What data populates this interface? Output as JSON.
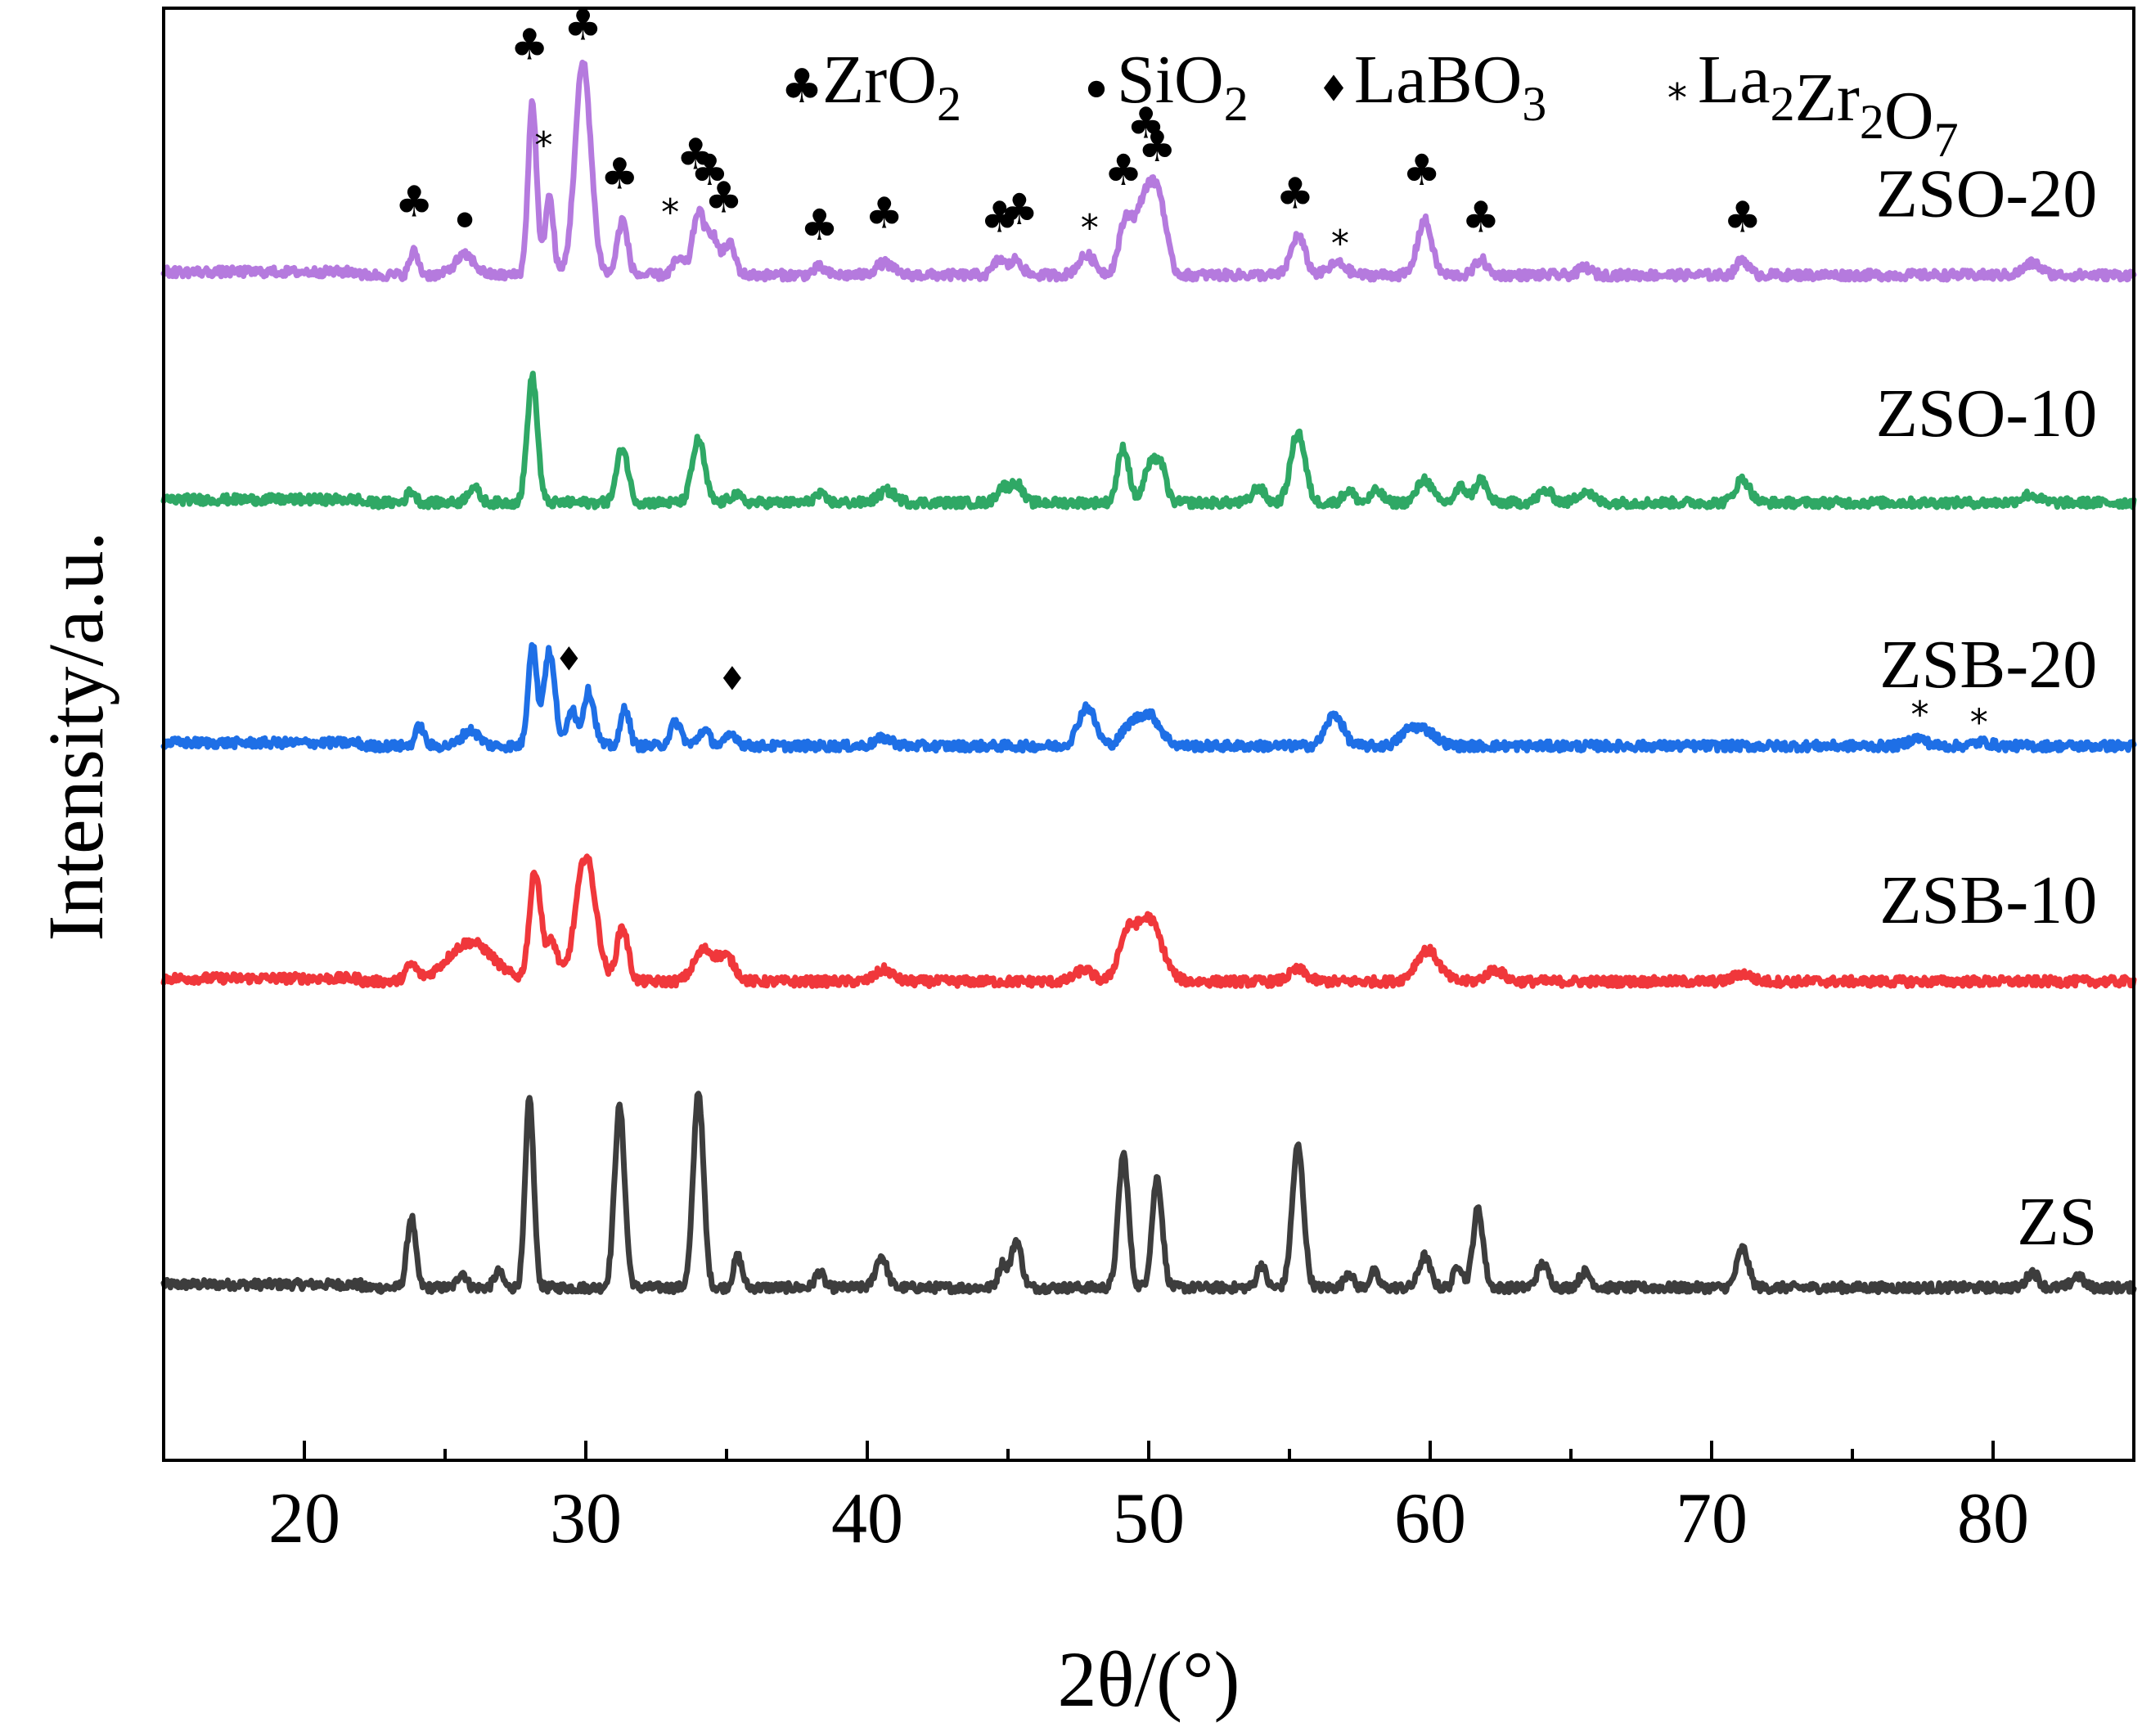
{
  "chart_data": {
    "type": "line",
    "xlabel": "2θ/(°)",
    "ylabel": "Intensity/a.u.",
    "xlim": [
      15,
      85
    ],
    "xticks": [
      20,
      30,
      40,
      50,
      60,
      70,
      80
    ],
    "legend": {
      "placement": "top-right",
      "entries": [
        {
          "marker": "club",
          "label": "ZrO",
          "sub": "2"
        },
        {
          "marker": "dot",
          "label": "SiO",
          "sub": "2"
        },
        {
          "marker": "diamond",
          "label": "LaBO",
          "sub": "3"
        },
        {
          "marker": "star",
          "label": "La",
          "sub": "2",
          "label2": "Zr",
          "sub2": "2",
          "label3": "O",
          "sub3": "7"
        }
      ]
    },
    "series": [
      {
        "name": "ZS",
        "color": "#3d3d3d",
        "offset": 0.0,
        "baseline": 0.22,
        "peaks": [
          [
            23.8,
            0.09,
            0.15
          ],
          [
            25.6,
            0.02,
            0.15
          ],
          [
            26.9,
            0.02,
            0.15
          ],
          [
            28.0,
            0.24,
            0.15
          ],
          [
            31.2,
            0.23,
            0.18
          ],
          [
            34.0,
            0.25,
            0.18
          ],
          [
            35.4,
            0.04,
            0.15
          ],
          [
            38.3,
            0.02,
            0.15
          ],
          [
            40.5,
            0.04,
            0.2
          ],
          [
            44.8,
            0.03,
            0.15
          ],
          [
            45.3,
            0.06,
            0.18
          ],
          [
            49.1,
            0.17,
            0.18
          ],
          [
            50.3,
            0.14,
            0.18
          ],
          [
            54.0,
            0.03,
            0.15
          ],
          [
            55.3,
            0.18,
            0.2
          ],
          [
            57.1,
            0.02,
            0.15
          ],
          [
            58.0,
            0.02,
            0.15
          ],
          [
            59.8,
            0.04,
            0.2
          ],
          [
            61.0,
            0.03,
            0.15
          ],
          [
            61.7,
            0.1,
            0.18
          ],
          [
            64.0,
            0.03,
            0.2
          ],
          [
            65.5,
            0.02,
            0.2
          ],
          [
            71.1,
            0.05,
            0.2
          ],
          [
            81.4,
            0.02,
            0.2
          ],
          [
            83.0,
            0.015,
            0.2
          ]
        ]
      },
      {
        "name": "ZSB-10",
        "color": "#f0373b",
        "offset": 0.0,
        "baseline": 0.61,
        "peaks": [
          [
            23.8,
            0.02,
            0.2
          ],
          [
            25.9,
            0.05,
            0.8
          ],
          [
            28.2,
            0.14,
            0.2
          ],
          [
            28.8,
            0.05,
            0.2
          ],
          [
            30.0,
            0.16,
            0.35
          ],
          [
            31.3,
            0.07,
            0.2
          ],
          [
            34.2,
            0.04,
            0.35
          ],
          [
            35.0,
            0.03,
            0.3
          ],
          [
            40.6,
            0.015,
            0.3
          ],
          [
            47.7,
            0.015,
            0.3
          ],
          [
            49.2,
            0.05,
            0.3
          ],
          [
            50.0,
            0.08,
            0.45
          ],
          [
            55.3,
            0.015,
            0.3
          ],
          [
            59.9,
            0.04,
            0.4
          ],
          [
            62.3,
            0.015,
            0.3
          ],
          [
            71.1,
            0.01,
            0.3
          ]
        ]
      },
      {
        "name": "ZSB-20",
        "color": "#1e6fe6",
        "offset": 0.0,
        "baseline": 0.91,
        "peaks": [
          [
            24.1,
            0.025,
            0.15
          ],
          [
            25.9,
            0.02,
            0.3
          ],
          [
            28.1,
            0.13,
            0.15
          ],
          [
            28.7,
            0.12,
            0.2
          ],
          [
            29.5,
            0.05,
            0.15
          ],
          [
            30.1,
            0.07,
            0.2
          ],
          [
            31.4,
            0.05,
            0.15
          ],
          [
            33.2,
            0.03,
            0.2
          ],
          [
            34.2,
            0.02,
            0.2
          ],
          [
            35.2,
            0.015,
            0.2
          ],
          [
            40.6,
            0.01,
            0.3
          ],
          [
            47.8,
            0.05,
            0.3
          ],
          [
            49.3,
            0.02,
            0.3
          ],
          [
            50.0,
            0.04,
            0.4
          ],
          [
            56.6,
            0.04,
            0.3
          ],
          [
            59.2,
            0.015,
            0.3
          ],
          [
            59.8,
            0.02,
            0.4
          ],
          [
            77.3,
            0.01,
            0.3
          ],
          [
            79.6,
            0.005,
            0.3
          ]
        ]
      },
      {
        "name": "ZSO-10",
        "color": "#2fa865",
        "offset": 0.0,
        "baseline": 1.22,
        "peaks": [
          [
            23.8,
            0.015,
            0.15
          ],
          [
            26.0,
            0.02,
            0.2
          ],
          [
            28.1,
            0.16,
            0.18
          ],
          [
            31.3,
            0.07,
            0.2
          ],
          [
            34.0,
            0.08,
            0.22
          ],
          [
            35.3,
            0.01,
            0.2
          ],
          [
            38.3,
            0.01,
            0.2
          ],
          [
            40.7,
            0.015,
            0.3
          ],
          [
            44.8,
            0.02,
            0.2
          ],
          [
            45.3,
            0.025,
            0.2
          ],
          [
            49.1,
            0.07,
            0.2
          ],
          [
            50.0,
            0.04,
            0.2
          ],
          [
            50.4,
            0.05,
            0.2
          ],
          [
            53.9,
            0.02,
            0.2
          ],
          [
            55.3,
            0.09,
            0.25
          ],
          [
            57.1,
            0.015,
            0.2
          ],
          [
            58.1,
            0.015,
            0.2
          ],
          [
            59.8,
            0.03,
            0.25
          ],
          [
            61.1,
            0.02,
            0.2
          ],
          [
            61.8,
            0.03,
            0.2
          ],
          [
            64.1,
            0.015,
            0.25
          ],
          [
            65.5,
            0.015,
            0.25
          ],
          [
            71.1,
            0.03,
            0.25
          ],
          [
            81.3,
            0.01,
            0.3
          ]
        ]
      },
      {
        "name": "ZSO-20",
        "color": "#b57ade",
        "offset": 0.0,
        "baseline": 1.51,
        "peaks": [
          [
            23.9,
            0.03,
            0.15
          ],
          [
            25.7,
            0.025,
            0.35
          ],
          [
            28.1,
            0.22,
            0.15
          ],
          [
            28.7,
            0.1,
            0.15
          ],
          [
            29.9,
            0.27,
            0.28
          ],
          [
            31.3,
            0.07,
            0.18
          ],
          [
            33.3,
            0.02,
            0.2
          ],
          [
            34.0,
            0.08,
            0.2
          ],
          [
            34.5,
            0.05,
            0.2
          ],
          [
            35.1,
            0.04,
            0.2
          ],
          [
            38.3,
            0.01,
            0.2
          ],
          [
            40.6,
            0.015,
            0.3
          ],
          [
            44.7,
            0.02,
            0.2
          ],
          [
            45.3,
            0.02,
            0.2
          ],
          [
            47.8,
            0.025,
            0.3
          ],
          [
            49.2,
            0.07,
            0.25
          ],
          [
            49.9,
            0.1,
            0.3
          ],
          [
            50.4,
            0.08,
            0.25
          ],
          [
            55.3,
            0.05,
            0.25
          ],
          [
            56.7,
            0.015,
            0.3
          ],
          [
            59.8,
            0.07,
            0.25
          ],
          [
            61.8,
            0.02,
            0.2
          ],
          [
            65.5,
            0.01,
            0.2
          ],
          [
            71.1,
            0.02,
            0.2
          ],
          [
            81.4,
            0.015,
            0.3
          ]
        ]
      }
    ],
    "series_labels": [
      {
        "text": "ZSO-20",
        "x": 83.7,
        "y": 1.585
      },
      {
        "text": "ZSO-10",
        "x": 83.7,
        "y": 1.305
      },
      {
        "text": "ZSB-20",
        "x": 83.7,
        "y": 0.985
      },
      {
        "text": "ZSB-10",
        "x": 83.7,
        "y": 0.685
      },
      {
        "text": "ZS",
        "x": 83.7,
        "y": 0.275
      }
    ],
    "annotations": [
      {
        "marker": "club",
        "x": 23.9,
        "y": 1.585
      },
      {
        "marker": "dot",
        "x": 25.7,
        "y": 1.565
      },
      {
        "marker": "club",
        "x": 28.0,
        "y": 1.785
      },
      {
        "marker": "club",
        "x": 29.9,
        "y": 1.81
      },
      {
        "marker": "star",
        "x": 28.5,
        "y": 1.67
      },
      {
        "marker": "club",
        "x": 31.2,
        "y": 1.62
      },
      {
        "marker": "star",
        "x": 33.0,
        "y": 1.585
      },
      {
        "marker": "club",
        "x": 33.9,
        "y": 1.645
      },
      {
        "marker": "club",
        "x": 34.4,
        "y": 1.625
      },
      {
        "marker": "club",
        "x": 34.9,
        "y": 1.59
      },
      {
        "marker": "club",
        "x": 38.3,
        "y": 1.555
      },
      {
        "marker": "club",
        "x": 40.6,
        "y": 1.57
      },
      {
        "marker": "club",
        "x": 44.7,
        "y": 1.565
      },
      {
        "marker": "club",
        "x": 45.4,
        "y": 1.575
      },
      {
        "marker": "star",
        "x": 47.9,
        "y": 1.565
      },
      {
        "marker": "club",
        "x": 49.1,
        "y": 1.625
      },
      {
        "marker": "club",
        "x": 49.9,
        "y": 1.685
      },
      {
        "marker": "club",
        "x": 50.3,
        "y": 1.655
      },
      {
        "marker": "club",
        "x": 55.2,
        "y": 1.595
      },
      {
        "marker": "star",
        "x": 56.8,
        "y": 1.545
      },
      {
        "marker": "club",
        "x": 59.7,
        "y": 1.625
      },
      {
        "marker": "club",
        "x": 61.8,
        "y": 1.565
      },
      {
        "marker": "club",
        "x": 71.1,
        "y": 1.565
      },
      {
        "marker": "diamond",
        "x": 29.4,
        "y": 1.005
      },
      {
        "marker": "diamond",
        "x": 35.2,
        "y": 0.98
      },
      {
        "marker": "star",
        "x": 77.4,
        "y": 0.945
      },
      {
        "marker": "star",
        "x": 79.5,
        "y": 0.935
      }
    ],
    "ylim": [
      0,
      1.85
    ]
  }
}
